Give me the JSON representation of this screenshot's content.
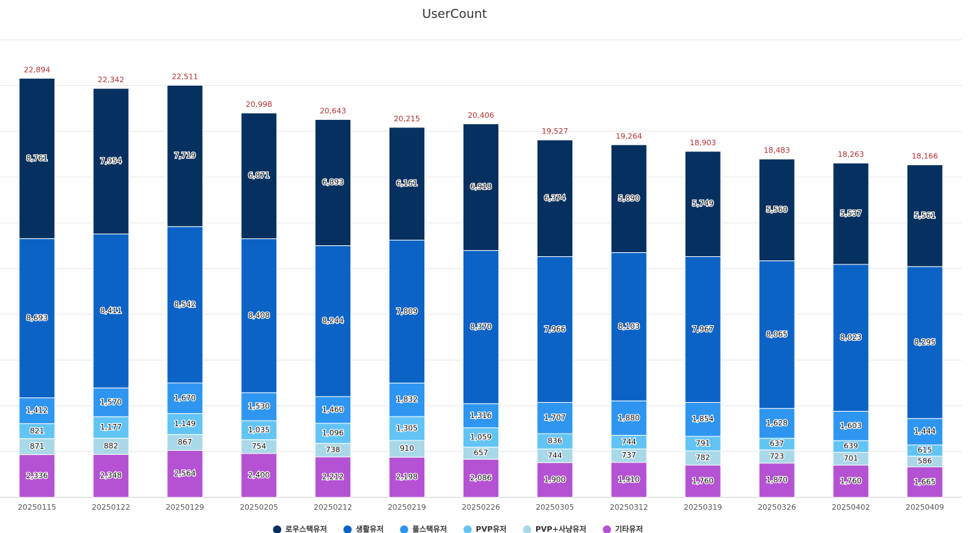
{
  "chart_data": {
    "type": "stacked-bar",
    "title": "UserCount",
    "categories": [
      "20250115",
      "20250122",
      "20250129",
      "20250205",
      "20250212",
      "20250219",
      "20250226",
      "20250305",
      "20250312",
      "20250319",
      "20250326",
      "20250402",
      "20250409"
    ],
    "ylim": [
      0,
      25000
    ],
    "yticks": [
      0,
      2500,
      5000,
      7500,
      10000,
      12500,
      15000,
      17500,
      20000,
      22500,
      25000
    ],
    "grid": true,
    "legend": "bottom",
    "series": [
      {
        "name": "기타유저",
        "color": "#b552d3",
        "values": [
          2336,
          2348,
          2564,
          2400,
          2212,
          2198,
          2086,
          1900,
          1910,
          1760,
          1870,
          1760,
          1665
        ],
        "value_labels": [
          "2,336",
          "2,348",
          "2,564",
          "2,400",
          "2,212",
          "2,198",
          "2,086",
          "1,900",
          "1,910",
          "1,760",
          "1,870",
          "1,760",
          "1,665"
        ]
      },
      {
        "name": "PVP+사냥유저",
        "color": "#a9d8e8",
        "values": [
          871,
          882,
          867,
          754,
          738,
          910,
          657,
          744,
          737,
          782,
          723,
          701,
          586
        ],
        "value_labels": [
          "871",
          "882",
          "867",
          "754",
          "738",
          "910",
          "657",
          "744",
          "737",
          "782",
          "723",
          "701",
          "586"
        ]
      },
      {
        "name": "PVP유저",
        "color": "#62c4f5",
        "values": [
          821,
          1177,
          1149,
          1035,
          1096,
          1305,
          1059,
          836,
          744,
          791,
          637,
          639,
          615
        ],
        "value_labels": [
          "821",
          "1,177",
          "1,149",
          "1,035",
          "1,096",
          "1,305",
          "1,059",
          "836",
          "744",
          "791",
          "637",
          "639",
          "615"
        ]
      },
      {
        "name": "풀스택유저",
        "color": "#2e96f0",
        "values": [
          1412,
          1570,
          1670,
          1530,
          1460,
          1832,
          1316,
          1707,
          1880,
          1854,
          1628,
          1603,
          1444
        ],
        "value_labels": [
          "1,412",
          "1,570",
          "1,670",
          "1,530",
          "1,460",
          "1,832",
          "1,316",
          "1,707",
          "1,880",
          "1,854",
          "1,628",
          "1,603",
          "1,444"
        ]
      },
      {
        "name": "생활유저",
        "color": "#0b63c6",
        "values": [
          8693,
          8411,
          8542,
          8408,
          8244,
          7809,
          8370,
          7966,
          8103,
          7967,
          8065,
          8023,
          8295
        ],
        "value_labels": [
          "8,693",
          "8,411",
          "8,542",
          "8,408",
          "8,244",
          "7,809",
          "8,370",
          "7,966",
          "8,103",
          "7,967",
          "8,065",
          "8,023",
          "8,295"
        ]
      },
      {
        "name": "로우스택유저",
        "color": "#06305f",
        "values": [
          8761,
          7954,
          7719,
          6871,
          6893,
          6161,
          6918,
          6374,
          5890,
          5749,
          5560,
          5537,
          5561
        ],
        "value_labels": [
          "8,761",
          "7,954",
          "7,719",
          "6,871",
          "6,893",
          "6,161",
          "6,918",
          "6,374",
          "5,890",
          "5,749",
          "5,560",
          "5,537",
          "5,561"
        ]
      }
    ],
    "totals": {
      "values": [
        22894,
        22342,
        22511,
        20998,
        20643,
        20215,
        20406,
        19527,
        19264,
        18903,
        18483,
        18263,
        18166
      ],
      "value_labels": [
        "22,894",
        "22,342",
        "22,511",
        "20,998",
        "20,643",
        "20,215",
        "20,406",
        "19,527",
        "19,264",
        "18,903",
        "18,483",
        "18,263",
        "18,166"
      ]
    }
  }
}
